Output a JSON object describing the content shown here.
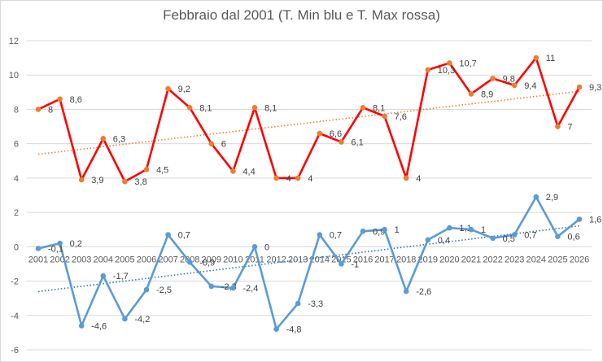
{
  "chart_data": {
    "type": "line",
    "title": "Febbraio dal 2001 (T. Min blu e T. Max rossa)",
    "xlabel": "",
    "ylabel": "",
    "x": [
      "2001",
      "2002",
      "2003",
      "2004",
      "2005",
      "2006",
      "2007",
      "2008",
      "2009",
      "2010",
      "2011",
      "2012",
      "2013",
      "2014",
      "2015",
      "2016",
      "2017",
      "2018",
      "2019",
      "2020",
      "2021",
      "2022",
      "2023",
      "2024",
      "2025",
      "2026"
    ],
    "ylim": [
      -6,
      12
    ],
    "yticks": [
      -6,
      -4,
      -2,
      0,
      2,
      4,
      6,
      8,
      10,
      12
    ],
    "grid": true,
    "series": [
      {
        "color": "#ff0000",
        "marker_color": "#ed7d31",
        "trendline_color": "#ed7d31",
        "values": [
          8,
          8.6,
          3.9,
          6.3,
          3.8,
          4.5,
          9.2,
          8.1,
          6,
          4.4,
          8.1,
          4,
          4,
          6.6,
          6.1,
          8.1,
          7.6,
          4,
          10.3,
          10.7,
          8.9,
          9.8,
          9.4,
          11,
          7,
          9.3
        ],
        "labels": [
          "8",
          "8,6",
          "3,9",
          "6,3",
          "3,8",
          "4,5",
          "9,2",
          "8,1",
          "6",
          "4,4",
          "8,1",
          "4",
          "4",
          "6,6",
          "6,1",
          "8,1",
          "7,6",
          "4",
          "10,3",
          "10,7",
          "8,9",
          "9,8",
          "9,4",
          "11",
          "7",
          "9,3"
        ]
      },
      {
        "color": "#5b9bd5",
        "marker_color": "#5b9bd5",
        "trendline_color": "#2e75b6",
        "values": [
          -0.1,
          0.2,
          -4.6,
          -1.7,
          -4.2,
          -2.5,
          0.7,
          -0.9,
          -2.3,
          -2.4,
          0,
          -4.8,
          -3.3,
          0.7,
          -1,
          0.9,
          1,
          -2.6,
          0.4,
          1.1,
          1,
          0.5,
          0.7,
          2.9,
          0.6,
          1.6
        ],
        "labels": [
          "-0,1",
          "0,2",
          "-4,6",
          "-1,7",
          "-4,2",
          "-2,5",
          "0,7",
          "-0,9",
          "-2,3",
          "-2,4",
          "0",
          "-4,8",
          "-3,3",
          "0,7",
          "-1",
          "0,9",
          "1",
          "-2,6",
          "0,4",
          "1,1",
          "1",
          "0,5",
          "0,7",
          "2,9",
          "0,6",
          "1,6"
        ]
      }
    ]
  }
}
